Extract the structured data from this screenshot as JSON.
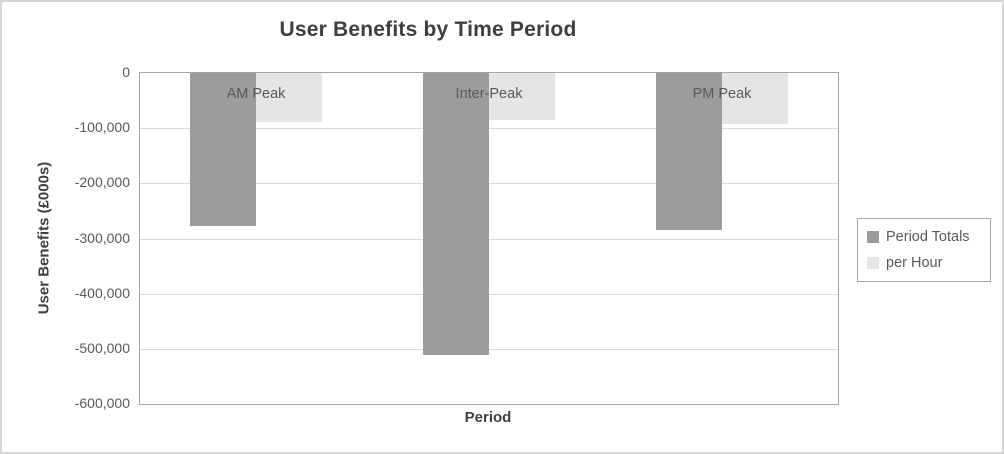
{
  "chart_data": {
    "type": "bar",
    "title": "User Benefits by Time Period",
    "categories": [
      "AM Peak",
      "Inter-Peak",
      "PM Peak"
    ],
    "series": [
      {
        "name": "Period Totals",
        "color": "#9c9c9c",
        "values": [
          -277000,
          -512000,
          -285000
        ]
      },
      {
        "name": "per Hour",
        "color": "#e5e5e5",
        "values": [
          -89000,
          -86000,
          -92000
        ]
      }
    ],
    "xlabel": "Period",
    "ylabel": "User Benefits (£000s)",
    "ylim": [
      -600000,
      0
    ],
    "ytick_step": 100000,
    "ytick_labels": [
      "0",
      "-100,000",
      "-200,000",
      "-300,000",
      "-400,000",
      "-500,000",
      "-600,000"
    ],
    "legend_position": "right",
    "grid": true,
    "colors": {
      "title_text": "#3f3f3f",
      "tick_text": "#595959",
      "gridline": "#d9d9d9",
      "plot_border": "#a6a6a6",
      "legend_border": "#a6a6a6",
      "outer_border": "#d6d6d6",
      "background": "#ffffff"
    }
  }
}
